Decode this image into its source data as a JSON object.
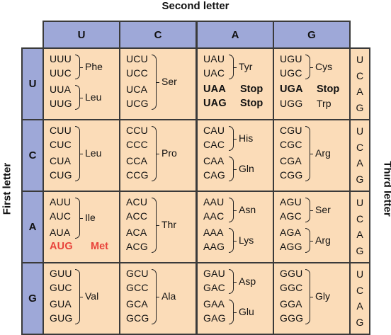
{
  "titles": {
    "second": "Second letter",
    "first": "First letter",
    "third": "Third letter"
  },
  "columns": [
    "U",
    "C",
    "A",
    "G"
  ],
  "rows": [
    {
      "label": "U",
      "cells": [
        [
          [
            "UUU",
            "UUC",
            "Phe"
          ],
          [
            "UUA",
            "UUG",
            "Leu"
          ]
        ],
        [
          [
            "UCU",
            "UCC",
            "UCA",
            "UCG",
            "Ser"
          ]
        ],
        [
          [
            "UAU",
            "UAC",
            "Tyr"
          ],
          [
            "UAA",
            "Stop",
            "bold"
          ],
          [
            "UAG",
            "Stop",
            "bold"
          ]
        ],
        [
          [
            "UGU",
            "UGC",
            "Cys"
          ],
          [
            "UGA",
            "Stop",
            "bold"
          ],
          [
            "UGG",
            "Trp",
            "plain"
          ]
        ]
      ],
      "third": [
        "U",
        "C",
        "A",
        "G"
      ]
    },
    {
      "label": "C",
      "cells": [
        [
          [
            "CUU",
            "CUC",
            "CUA",
            "CUG",
            "Leu"
          ]
        ],
        [
          [
            "CCU",
            "CCC",
            "CCA",
            "CCG",
            "Pro"
          ]
        ],
        [
          [
            "CAU",
            "CAC",
            "His"
          ],
          [
            "CAA",
            "CAG",
            "Gln"
          ]
        ],
        [
          [
            "CGU",
            "CGC",
            "CGA",
            "CGG",
            "Arg"
          ]
        ]
      ],
      "third": [
        "U",
        "C",
        "A",
        "G"
      ]
    },
    {
      "label": "A",
      "cells": [
        [
          [
            "AUU",
            "AUC",
            "AUA",
            "Ile"
          ],
          [
            "AUG",
            "Met",
            "red"
          ]
        ],
        [
          [
            "ACU",
            "ACC",
            "ACA",
            "ACG",
            "Thr"
          ]
        ],
        [
          [
            "AAU",
            "AAC",
            "Asn"
          ],
          [
            "AAA",
            "AAG",
            "Lys"
          ]
        ],
        [
          [
            "AGU",
            "AGC",
            "Ser"
          ],
          [
            "AGA",
            "AGG",
            "Arg"
          ]
        ]
      ],
      "third": [
        "U",
        "C",
        "A",
        "G"
      ]
    },
    {
      "label": "G",
      "cells": [
        [
          [
            "GUU",
            "GUC",
            "GUA",
            "GUG",
            "Val"
          ]
        ],
        [
          [
            "GCU",
            "GCC",
            "GCA",
            "GCG",
            "Ala"
          ]
        ],
        [
          [
            "GAU",
            "GAC",
            "Asp"
          ],
          [
            "GAA",
            "GAG",
            "Glu"
          ]
        ],
        [
          [
            "GGU",
            "GGC",
            "GGA",
            "GGG",
            "Gly"
          ]
        ]
      ],
      "third": [
        "U",
        "C",
        "A",
        "G"
      ]
    }
  ],
  "colors": {
    "header": "#9ea8d8",
    "cell": "#fbdcb8",
    "border": "#3a3a3a",
    "start": "#e8423a"
  }
}
